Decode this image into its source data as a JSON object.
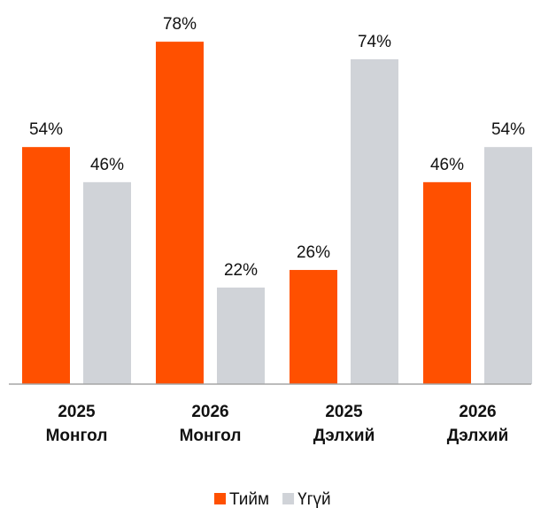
{
  "chart_data": {
    "type": "bar",
    "categories": [
      "2025\nМонгол",
      "2026\nМонгол",
      "2025\nДэлхий",
      "2026\nДэлхий"
    ],
    "series": [
      {
        "name": "Тийм",
        "color": "#ff5000",
        "values": [
          54,
          78,
          26,
          46
        ],
        "value_labels": [
          "54%",
          "78%",
          "26%",
          "46%"
        ]
      },
      {
        "name": "Үгүй",
        "color": "#d0d3d8",
        "values": [
          46,
          22,
          74,
          54
        ],
        "value_labels": [
          "46%",
          "22%",
          "74%",
          "54%"
        ]
      }
    ],
    "ylim": [
      0,
      87.5
    ],
    "grid": false,
    "legend": "bottom"
  }
}
